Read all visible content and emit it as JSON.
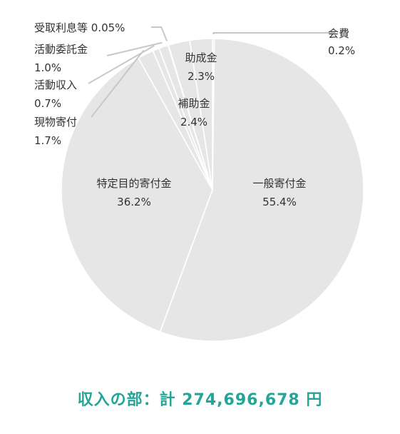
{
  "chart_data": {
    "type": "pie",
    "colors": {
      "slice": "#e6e6e6",
      "edge": "#ffffff",
      "leader": "#c8c8c8",
      "caption": "#23a597"
    },
    "slices": [
      {
        "label": "会費",
        "value": 0.2,
        "value_text": "0.2%"
      },
      {
        "label": "一般寄付金",
        "value": 55.4,
        "value_text": "55.4%"
      },
      {
        "label": "特定目的寄付金",
        "value": 36.2,
        "value_text": "36.2%"
      },
      {
        "label": "現物寄付",
        "value": 1.7,
        "value_text": "1.7%"
      },
      {
        "label": "活動収入",
        "value": 0.7,
        "value_text": "0.7%"
      },
      {
        "label": "活動委託金",
        "value": 1.0,
        "value_text": "1.0%"
      },
      {
        "label": "受取利息等",
        "value": 0.05,
        "value_text": "0.05%"
      },
      {
        "label": "助成金",
        "value": 2.3,
        "value_text": "2.3%"
      },
      {
        "label": "補助金",
        "value": 2.4,
        "value_text": "2.4%"
      }
    ]
  },
  "caption": "収入の部：計 274,696,678 円"
}
